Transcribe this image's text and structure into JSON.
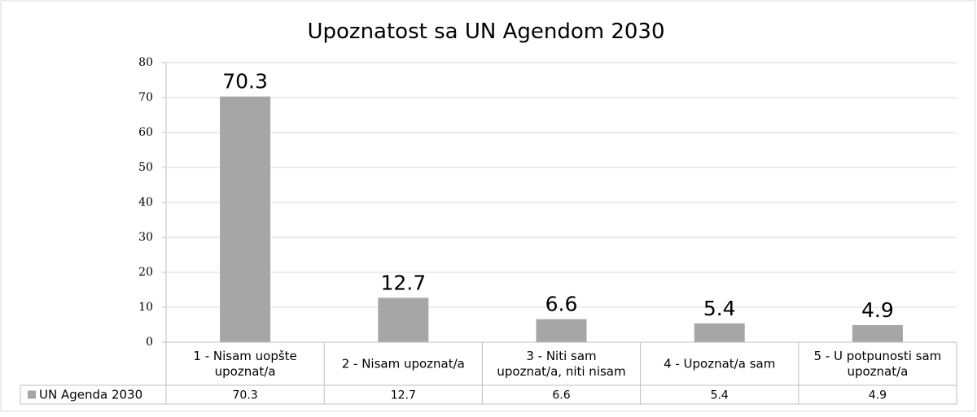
{
  "chart_data": {
    "type": "bar",
    "title": "Upoznatost sa UN Agendom 2030",
    "categories": [
      [
        "1 - Nisam uopšte",
        "upoznat/a"
      ],
      [
        "2 - Nisam upoznat/a"
      ],
      [
        "3 - Niti sam",
        "upoznat/a, niti nisam"
      ],
      [
        "4 - Upoznat/a sam"
      ],
      [
        "5 - U potpunosti sam",
        "upoznat/a"
      ]
    ],
    "series": [
      {
        "name": "UN Agenda 2030",
        "values": [
          70.3,
          12.7,
          6.6,
          5.4,
          4.9
        ],
        "color": "#a6a6a6"
      }
    ],
    "ylim": [
      0,
      80
    ],
    "yticks": [
      0,
      10,
      20,
      30,
      40,
      50,
      60,
      70,
      80
    ],
    "grid": true,
    "data_table": true,
    "legend": "data-table"
  }
}
